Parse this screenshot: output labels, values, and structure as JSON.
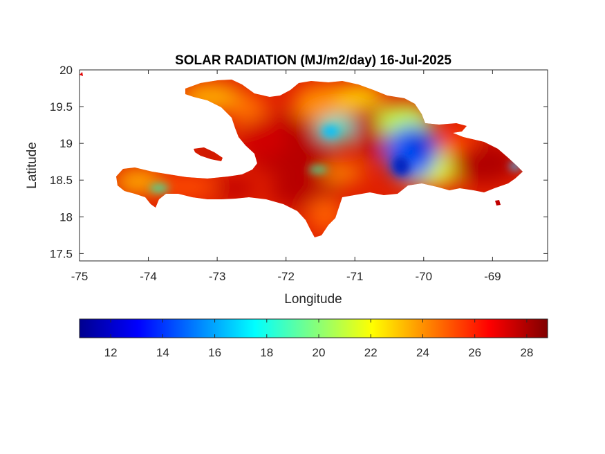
{
  "chart_data": {
    "type": "heatmap",
    "title": "SOLAR RADIATION (MJ/m2/day) 16-Jul-2025",
    "xlabel": "Longitude",
    "ylabel": "Latitude",
    "xlim": [
      -75,
      -68.2
    ],
    "ylim": [
      17.4,
      20
    ],
    "x_ticks": [
      "-75",
      "-74",
      "-73",
      "-72",
      "-71",
      "-70",
      "-69"
    ],
    "x_tick_values": [
      -75,
      -74,
      -73,
      -72,
      -71,
      -70,
      -69
    ],
    "y_ticks": [
      "20",
      "19.5",
      "19",
      "18.5",
      "18",
      "17.5"
    ],
    "y_tick_values": [
      20,
      19.5,
      19,
      18.5,
      18,
      17.5
    ],
    "grid": false,
    "colormap": "jet",
    "colorbar": {
      "orientation": "horizontal",
      "placement": "bottom",
      "range": [
        10.8,
        28.8
      ],
      "tick_labels": [
        "12",
        "14",
        "16",
        "18",
        "20",
        "22",
        "24",
        "26",
        "28"
      ],
      "tick_values": [
        12,
        14,
        16,
        18,
        20,
        22,
        24,
        26,
        28
      ]
    },
    "regions": [
      {
        "lon": -72.6,
        "lat": 19.1,
        "value": 26.5
      },
      {
        "lon": -71.7,
        "lat": 19.5,
        "value": 24.5
      },
      {
        "lon": -71.2,
        "lat": 19.2,
        "value": 17.5
      },
      {
        "lon": -70.3,
        "lat": 18.9,
        "value": 15.0
      },
      {
        "lon": -70.1,
        "lat": 18.6,
        "value": 19.0
      },
      {
        "lon": -69.2,
        "lat": 18.6,
        "value": 27.0
      },
      {
        "lon": -73.8,
        "lat": 18.4,
        "value": 25.0
      },
      {
        "lon": -71.9,
        "lat": 18.1,
        "value": 26.5
      },
      {
        "lon": -73.3,
        "lat": 19.7,
        "value": 23.0
      },
      {
        "lon": -72.8,
        "lat": 18.9,
        "value": 27.0
      }
    ]
  }
}
